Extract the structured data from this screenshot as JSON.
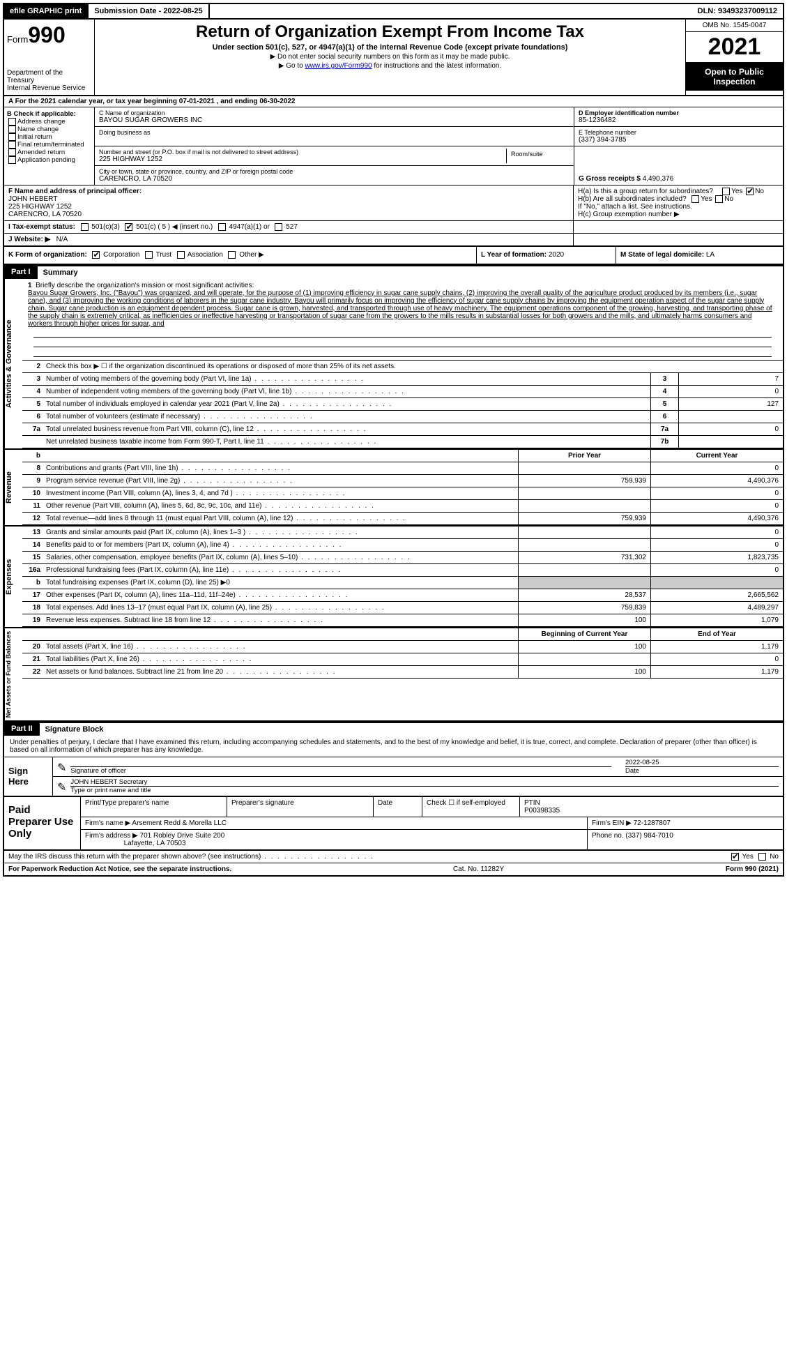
{
  "topbar": {
    "efile": "efile GRAPHIC print",
    "submission_label": "Submission Date - 2022-08-25",
    "dln": "DLN: 93493237009112"
  },
  "header": {
    "form_label": "Form",
    "form_num": "990",
    "dept": "Department of the Treasury",
    "irs": "Internal Revenue Service",
    "title": "Return of Organization Exempt From Income Tax",
    "subtitle": "Under section 501(c), 527, or 4947(a)(1) of the Internal Revenue Code (except private foundations)",
    "note1": "▶ Do not enter social security numbers on this form as it may be made public.",
    "note2_pre": "▶ Go to ",
    "note2_link": "www.irs.gov/Form990",
    "note2_post": " for instructions and the latest information.",
    "omb": "OMB No. 1545-0047",
    "year": "2021",
    "open_pub": "Open to Public Inspection"
  },
  "period": "A  For the 2021 calendar year, or tax year beginning 07-01-2021   , and ending 06-30-2022",
  "box_b": {
    "label": "B Check if applicable:",
    "opts": [
      "Address change",
      "Name change",
      "Initial return",
      "Final return/terminated",
      "Amended return",
      "Application pending"
    ]
  },
  "box_c": {
    "name_label": "C Name of organization",
    "name_val": "BAYOU SUGAR GROWERS INC",
    "dba_label": "Doing business as",
    "addr_label": "Number and street (or P.O. box if mail is not delivered to street address)",
    "room_label": "Room/suite",
    "addr_val": "225 HIGHWAY 1252",
    "city_label": "City or town, state or province, country, and ZIP or foreign postal code",
    "city_val": "CARENCRO, LA   70520"
  },
  "box_d": {
    "label": "D Employer identification number",
    "val": "85-1236482"
  },
  "box_e": {
    "label": "E Telephone number",
    "val": "(337) 394-3785"
  },
  "box_g": {
    "label": "G Gross receipts $",
    "val": "4,490,376"
  },
  "box_f": {
    "label": "F  Name and address of principal officer:",
    "name": "JOHN HEBERT",
    "addr": "225 HIGHWAY 1252",
    "city": "CARENCRO, LA   70520"
  },
  "box_h": {
    "ha": "H(a)  Is this a group return for subordinates?",
    "hb": "H(b)  Are all subordinates included?",
    "hb_note": "If \"No,\" attach a list. See instructions.",
    "hc": "H(c)  Group exemption number ▶"
  },
  "box_i": {
    "label": "I   Tax-exempt status:",
    "c3": "501(c)(3)",
    "c": "501(c) ( 5 ) ◀ (insert no.)",
    "a1": "4947(a)(1) or",
    "s527": "527"
  },
  "box_j": {
    "label": "J   Website: ▶",
    "val": "N/A"
  },
  "box_k": {
    "label": "K Form of organization:",
    "corp": "Corporation",
    "trust": "Trust",
    "assoc": "Association",
    "other": "Other ▶"
  },
  "box_l": {
    "label": "L Year of formation:",
    "val": "2020"
  },
  "box_m": {
    "label": "M State of legal domicile:",
    "val": "LA"
  },
  "part1": {
    "tag": "Part I",
    "title": "Summary",
    "side_act": "Activities & Governance",
    "side_rev": "Revenue",
    "side_exp": "Expenses",
    "side_net": "Net Assets or Fund Balances",
    "l1_label": "Briefly describe the organization's mission or most significant activities:",
    "l1_text": "Bayou Sugar Growers, Inc. (\"Bayou\") was organized, and will operate, for the purpose of (1) improving efficiency in sugar cane supply chains, (2) improving the overall quality of the agriculture product produced by its members (i.e., sugar cane), and (3) improving the working conditions of laborers in the sugar cane industry. Bayou will primarily focus on improving the efficiency of sugar cane supply chains by improving the equipment operation aspect of the sugar cane supply chain. Sugar cane production is an equipment dependent process. Sugar cane is grown, harvested, and transported through use of heavy machinery. The equipment operations component of the growing, harvesting, and transporting phase of the supply chain is extremely critical, as inefficiencies or ineffective harvesting or transportation of sugar cane from the growers to the mills results in substantial losses for both growers and the mills, and ultimately harms consumers and workers through higher prices for sugar, and",
    "l2": "Check this box ▶ ☐ if the organization discontinued its operations or disposed of more than 25% of its net assets.",
    "rows_ag": [
      {
        "n": "3",
        "d": "Number of voting members of the governing body (Part VI, line 1a)",
        "b": "3",
        "v": "7"
      },
      {
        "n": "4",
        "d": "Number of independent voting members of the governing body (Part VI, line 1b)",
        "b": "4",
        "v": "0"
      },
      {
        "n": "5",
        "d": "Total number of individuals employed in calendar year 2021 (Part V, line 2a)",
        "b": "5",
        "v": "127"
      },
      {
        "n": "6",
        "d": "Total number of volunteers (estimate if necessary)",
        "b": "6",
        "v": ""
      },
      {
        "n": "7a",
        "d": "Total unrelated business revenue from Part VIII, column (C), line 12",
        "b": "7a",
        "v": "0"
      },
      {
        "n": "",
        "d": "Net unrelated business taxable income from Form 990-T, Part I, line 11",
        "b": "7b",
        "v": ""
      }
    ],
    "hdr_prior": "Prior Year",
    "hdr_curr": "Current Year",
    "rows_rev": [
      {
        "n": "8",
        "d": "Contributions and grants (Part VIII, line 1h)",
        "p": "",
        "c": "0"
      },
      {
        "n": "9",
        "d": "Program service revenue (Part VIII, line 2g)",
        "p": "759,939",
        "c": "4,490,376"
      },
      {
        "n": "10",
        "d": "Investment income (Part VIII, column (A), lines 3, 4, and 7d )",
        "p": "",
        "c": "0"
      },
      {
        "n": "11",
        "d": "Other revenue (Part VIII, column (A), lines 5, 6d, 8c, 9c, 10c, and 11e)",
        "p": "",
        "c": "0"
      },
      {
        "n": "12",
        "d": "Total revenue—add lines 8 through 11 (must equal Part VIII, column (A), line 12)",
        "p": "759,939",
        "c": "4,490,376"
      }
    ],
    "rows_exp": [
      {
        "n": "13",
        "d": "Grants and similar amounts paid (Part IX, column (A), lines 1–3 )",
        "p": "",
        "c": "0"
      },
      {
        "n": "14",
        "d": "Benefits paid to or for members (Part IX, column (A), line 4)",
        "p": "",
        "c": "0"
      },
      {
        "n": "15",
        "d": "Salaries, other compensation, employee benefits (Part IX, column (A), lines 5–10)",
        "p": "731,302",
        "c": "1,823,735"
      },
      {
        "n": "16a",
        "d": "Professional fundraising fees (Part IX, column (A), line 11e)",
        "p": "",
        "c": "0"
      },
      {
        "n": "b",
        "d": "Total fundraising expenses (Part IX, column (D), line 25)  ▶0",
        "p": "shade",
        "c": "shade"
      },
      {
        "n": "17",
        "d": "Other expenses (Part IX, column (A), lines 11a–11d, 11f–24e)",
        "p": "28,537",
        "c": "2,665,562"
      },
      {
        "n": "18",
        "d": "Total expenses. Add lines 13–17 (must equal Part IX, column (A), line 25)",
        "p": "759,839",
        "c": "4,489,297"
      },
      {
        "n": "19",
        "d": "Revenue less expenses. Subtract line 18 from line 12",
        "p": "100",
        "c": "1,079"
      }
    ],
    "hdr_beg": "Beginning of Current Year",
    "hdr_end": "End of Year",
    "rows_net": [
      {
        "n": "20",
        "d": "Total assets (Part X, line 16)",
        "p": "100",
        "c": "1,179"
      },
      {
        "n": "21",
        "d": "Total liabilities (Part X, line 26)",
        "p": "",
        "c": "0"
      },
      {
        "n": "22",
        "d": "Net assets or fund balances. Subtract line 21 from line 20",
        "p": "100",
        "c": "1,179"
      }
    ]
  },
  "part2": {
    "tag": "Part II",
    "title": "Signature Block",
    "intro": "Under penalties of perjury, I declare that I have examined this return, including accompanying schedules and statements, and to the best of my knowledge and belief, it is true, correct, and complete. Declaration of preparer (other than officer) is based on all information of which preparer has any knowledge.",
    "sign_here": "Sign Here",
    "sig_of_officer": "Signature of officer",
    "sig_date_label": "Date",
    "sig_date": "2022-08-25",
    "officer_name": "JOHN HEBERT Secretary",
    "type_name": "Type or print name and title",
    "paid_prep": "Paid Preparer Use Only",
    "prep_name_label": "Print/Type preparer's name",
    "prep_sig_label": "Preparer's signature",
    "date_label": "Date",
    "self_emp": "Check ☐ if self-employed",
    "ptin_label": "PTIN",
    "ptin": "P00398335",
    "firm_name_label": "Firm's name    ▶",
    "firm_name": "Arsement Redd & Morella LLC",
    "firm_ein_label": "Firm's EIN ▶",
    "firm_ein": "72-1287807",
    "firm_addr_label": "Firm's address ▶",
    "firm_addr1": "701 Robley Drive Suite 200",
    "firm_addr2": "Lafayette, LA   70503",
    "phone_label": "Phone no.",
    "phone": "(337) 984-7010",
    "discuss": "May the IRS discuss this return with the preparer shown above? (see instructions)",
    "yes": "Yes",
    "no": "No"
  },
  "footer": {
    "pra": "For Paperwork Reduction Act Notice, see the separate instructions.",
    "cat": "Cat. No. 11282Y",
    "form": "Form 990 (2021)"
  }
}
